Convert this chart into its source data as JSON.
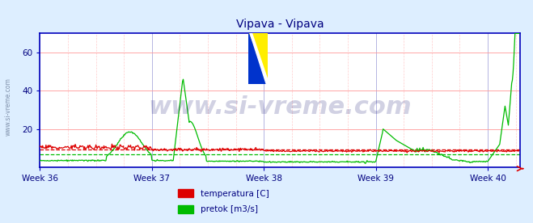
{
  "title": "Vipava - Vipava",
  "title_color": "#000080",
  "title_fontsize": 10,
  "bg_color": "#ddeeff",
  "plot_bg_color": "#ffffff",
  "ylim": [
    0,
    70
  ],
  "yticks": [
    20,
    40,
    60
  ],
  "grid_color_h": "#ff9999",
  "grid_color_v": "#aaaadd",
  "grid_color_v2": "#ffcccc",
  "week_labels": [
    "Week 36",
    "Week 37",
    "Week 38",
    "Week 39",
    "Week 40"
  ],
  "week_positions": [
    0,
    168,
    336,
    504,
    672
  ],
  "total_points": 720,
  "axis_color": "#0000bb",
  "tick_color": "#000080",
  "temp_color": "#dd0000",
  "pretok_color": "#00bb00",
  "avg_temp_color": "#dd0000",
  "avg_pretok_color": "#00bb00",
  "watermark": "www.si-vreme.com",
  "watermark_color": "#000066",
  "watermark_alpha": 0.18,
  "watermark_fontsize": 22,
  "legend_items": [
    {
      "label": "temperatura [C]",
      "color": "#dd0000"
    },
    {
      "label": "pretok [m3/s]",
      "color": "#00bb00"
    }
  ]
}
